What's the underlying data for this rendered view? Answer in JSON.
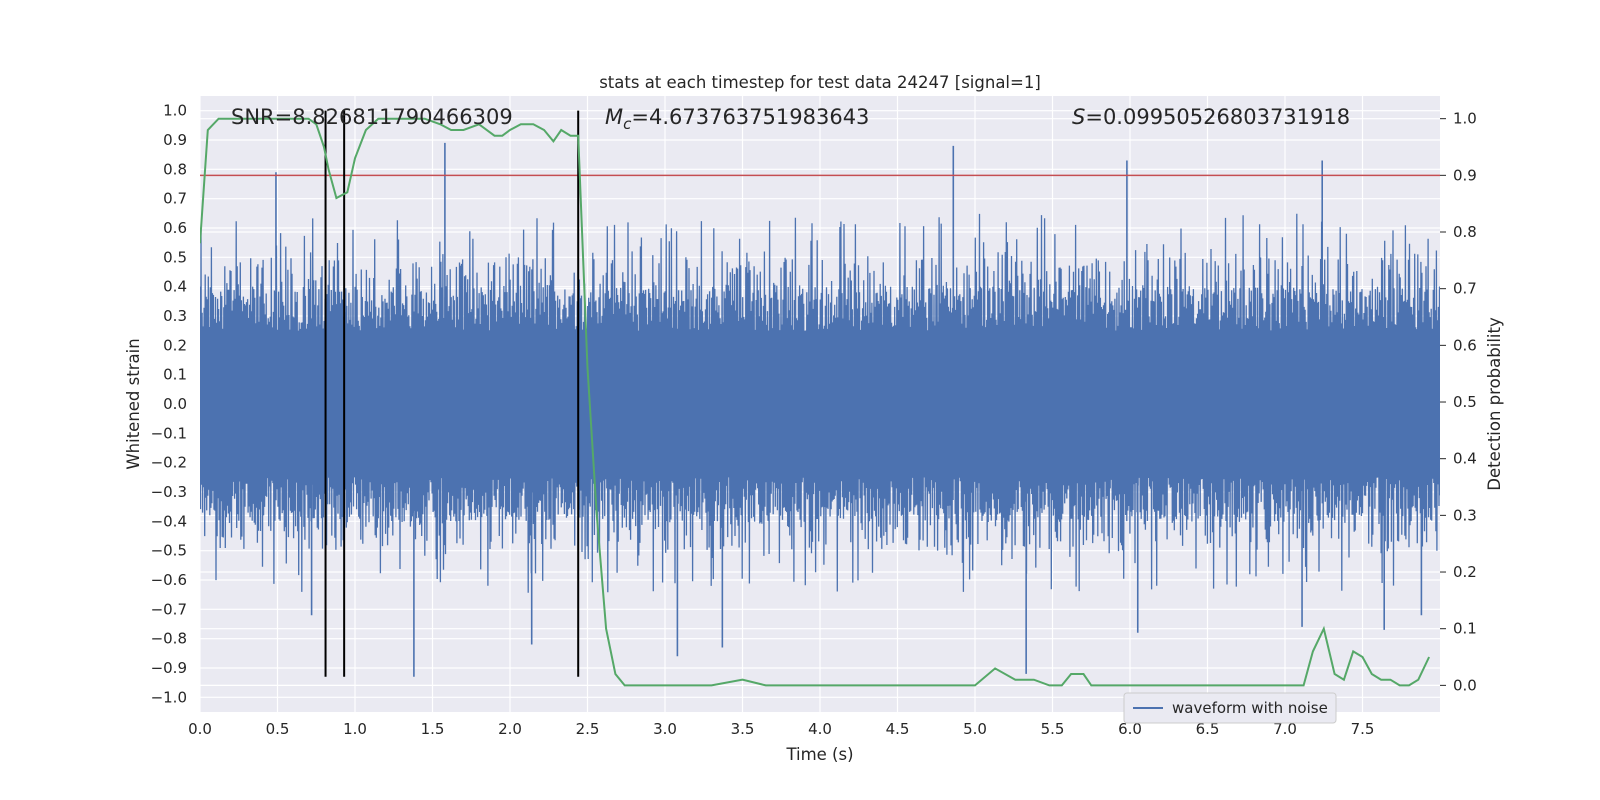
{
  "chart_data": {
    "type": "line",
    "title": "stats at each timestep for test data 24247 [signal=1]",
    "xlabel": "Time (s)",
    "ylabel": "Whitened strain",
    "y2label": "Detection probability",
    "xlim": [
      0.0,
      8.0
    ],
    "ylim": [
      -1.05,
      1.05
    ],
    "y2lim": [
      -0.047,
      1.04
    ],
    "xticks": [
      "0.0",
      "0.5",
      "1.0",
      "1.5",
      "2.0",
      "2.5",
      "3.0",
      "3.5",
      "4.0",
      "4.5",
      "5.0",
      "5.5",
      "6.0",
      "6.5",
      "7.0",
      "7.5"
    ],
    "yticks": [
      "−1.0",
      "−0.9",
      "−0.8",
      "−0.7",
      "−0.6",
      "−0.5",
      "−0.4",
      "−0.3",
      "−0.2",
      "−0.1",
      "0.0",
      "0.1",
      "0.2",
      "0.3",
      "0.4",
      "0.5",
      "0.6",
      "0.7",
      "0.8",
      "0.9",
      "1.0"
    ],
    "y2ticks": [
      "0.0",
      "0.1",
      "0.2",
      "0.3",
      "0.4",
      "0.5",
      "0.6",
      "0.7",
      "0.8",
      "0.9",
      "1.0"
    ],
    "grid": true,
    "legend": {
      "placement": "lower-right",
      "entries": [
        "waveform with noise"
      ]
    },
    "annotations": {
      "snr": "SNR=8.826811790466309",
      "mc_symbol": "M",
      "mc_sub": "c",
      "mc_value": "=4.673763751983643",
      "s_symbol": "S",
      "s_value": "=0.09950526803731918"
    },
    "threshold": {
      "axis": "y2",
      "value": 0.9,
      "color": "#c44e52"
    },
    "vertical_lines": [
      0.81,
      0.93,
      2.44
    ],
    "vertical_line_range": [
      -0.93,
      1.0
    ],
    "series": [
      {
        "name": "waveform with noise",
        "axis": "y",
        "color": "#4c72b0",
        "envelope_note": "dense noise trace",
        "peaks": [
          [
            0.49,
            0.79
          ],
          [
            0.72,
            -0.72
          ],
          [
            1.38,
            -0.93
          ],
          [
            1.58,
            0.89
          ],
          [
            2.14,
            -0.82
          ],
          [
            3.08,
            -0.86
          ],
          [
            3.37,
            -0.83
          ],
          [
            4.86,
            0.88
          ],
          [
            5.33,
            -0.92
          ],
          [
            5.98,
            0.83
          ],
          [
            6.05,
            -0.78
          ],
          [
            7.24,
            0.83
          ],
          [
            7.88,
            -0.72
          ],
          [
            7.11,
            -0.76
          ],
          [
            7.64,
            -0.77
          ]
        ]
      },
      {
        "name": "",
        "axis": "y2",
        "color": "#55a868",
        "x": [
          0.0,
          0.05,
          0.12,
          0.2,
          0.3,
          0.4,
          0.5,
          0.6,
          0.7,
          0.75,
          0.8,
          0.83,
          0.88,
          0.95,
          1.0,
          1.07,
          1.15,
          1.25,
          1.35,
          1.45,
          1.55,
          1.62,
          1.7,
          1.8,
          1.9,
          1.95,
          2.0,
          2.07,
          2.15,
          2.22,
          2.28,
          2.33,
          2.39,
          2.44,
          2.5,
          2.56,
          2.62,
          2.68,
          2.74,
          2.78,
          2.85,
          2.95,
          3.05,
          3.15,
          3.3,
          3.5,
          3.65,
          3.85,
          4.0,
          4.2,
          4.4,
          4.55,
          4.7,
          4.85,
          5.0,
          5.13,
          5.26,
          5.38,
          5.48,
          5.56,
          5.62,
          5.7,
          5.75,
          5.85,
          5.95,
          6.05,
          6.2,
          6.4,
          6.6,
          6.8,
          6.95,
          7.05,
          7.12,
          7.18,
          7.25,
          7.32,
          7.38,
          7.44,
          7.5,
          7.56,
          7.62,
          7.68,
          7.74,
          7.8,
          7.86,
          7.93
        ],
        "values": [
          0.78,
          0.98,
          1.0,
          1.0,
          1.0,
          1.0,
          1.0,
          1.0,
          1.0,
          0.99,
          0.95,
          0.91,
          0.86,
          0.87,
          0.93,
          0.98,
          1.0,
          1.0,
          1.0,
          1.0,
          0.99,
          0.98,
          0.98,
          0.99,
          0.97,
          0.97,
          0.98,
          0.99,
          0.99,
          0.98,
          0.96,
          0.98,
          0.97,
          0.97,
          0.56,
          0.3,
          0.1,
          0.02,
          0.0,
          0.0,
          0.0,
          0.0,
          0.0,
          0.0,
          0.0,
          0.01,
          0.0,
          0.0,
          0.0,
          0.0,
          0.0,
          0.0,
          0.0,
          0.0,
          0.0,
          0.03,
          0.01,
          0.01,
          0.0,
          0.0,
          0.02,
          0.02,
          0.0,
          0.0,
          0.0,
          0.0,
          0.0,
          0.0,
          0.0,
          0.0,
          0.0,
          0.0,
          0.0,
          0.06,
          0.1,
          0.02,
          0.01,
          0.06,
          0.05,
          0.02,
          0.01,
          0.01,
          0.0,
          0.0,
          0.01,
          0.05
        ]
      }
    ]
  }
}
